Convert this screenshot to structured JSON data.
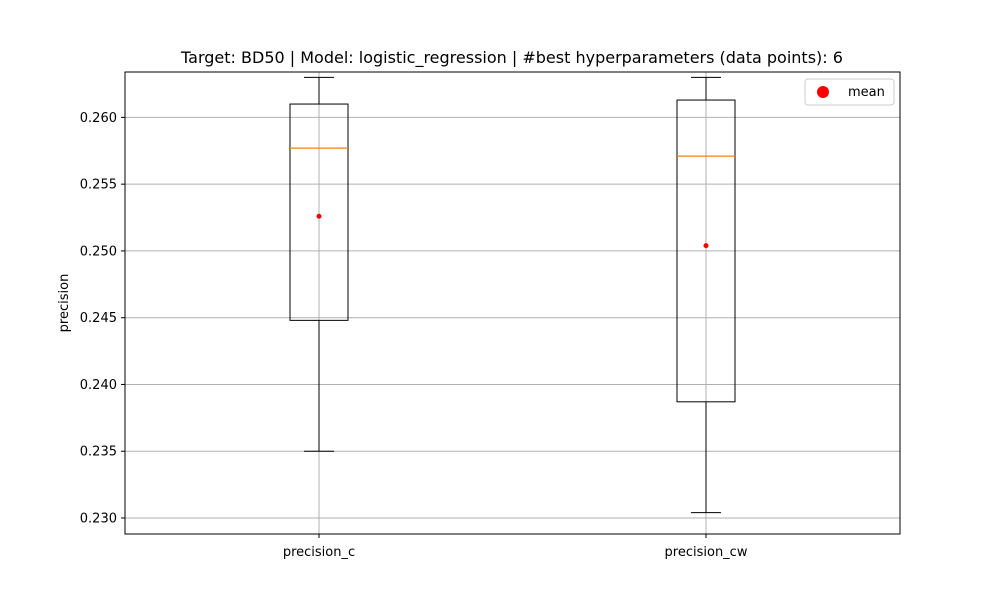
{
  "chart_data": {
    "type": "boxplot",
    "title": "Target: BD50 | Model: logistic_regression | #best hyperparameters (data points): 6",
    "xlabel": "",
    "ylabel": "precision",
    "ylim": [
      0.2288,
      0.2634
    ],
    "yticks": [
      0.23,
      0.235,
      0.24,
      0.245,
      0.25,
      0.255,
      0.26
    ],
    "ytick_labels": [
      "0.230",
      "0.235",
      "0.240",
      "0.245",
      "0.250",
      "0.255",
      "0.260"
    ],
    "grid": true,
    "categories": [
      "precision_c",
      "precision_cw"
    ],
    "boxes": [
      {
        "whisker_low": 0.235,
        "q1": 0.2448,
        "median": 0.2577,
        "q3": 0.261,
        "whisker_high": 0.263,
        "mean": 0.2526
      },
      {
        "whisker_low": 0.2304,
        "q1": 0.2387,
        "median": 0.2571,
        "q3": 0.2613,
        "whisker_high": 0.263,
        "mean": 0.2504
      }
    ],
    "legend": {
      "position": "top-right",
      "entries": [
        "mean"
      ]
    },
    "colors": {
      "box": "#000000",
      "median": "#ff7f0e",
      "mean": "#ff0000",
      "grid": "#b0b0b0"
    }
  }
}
